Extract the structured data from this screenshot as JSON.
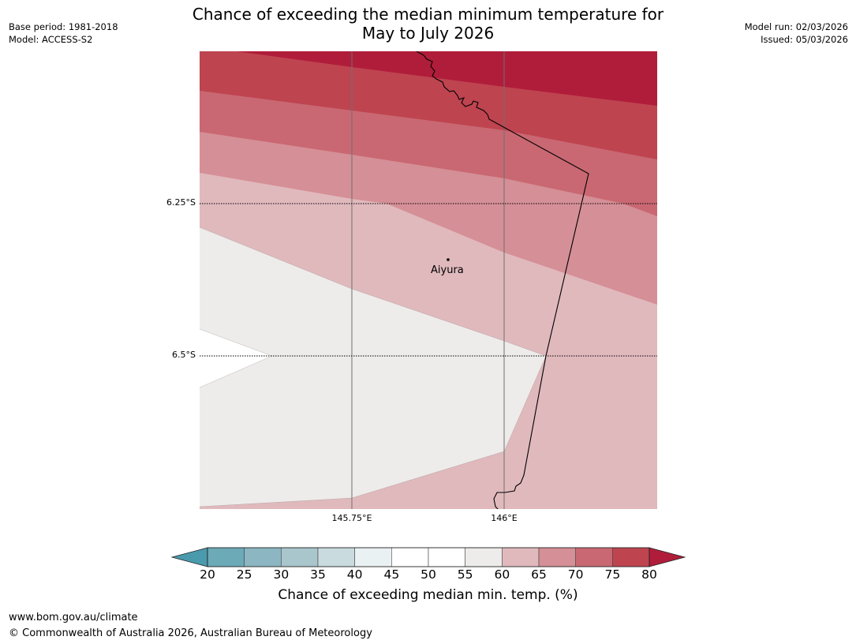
{
  "header": {
    "base_period": "Base period: 1981-2018",
    "model": "Model: ACCESS-S2",
    "model_run": "Model run: 02/03/2026",
    "issued": "Issued: 05/03/2026",
    "title_line1": "Chance of exceeding the median minimum temperature for",
    "title_line2": "May to July 2026"
  },
  "map": {
    "lat_labels": [
      "6.25°S",
      "6.5°S"
    ],
    "lon_labels": [
      "145.75°E",
      "146°E"
    ],
    "place": {
      "name": "Aiyura"
    },
    "bands": [
      {
        "range": "75-80",
        "color": "#be4450"
      },
      {
        "range": "70-75",
        "color": "#c96872"
      },
      {
        "range": "65-70",
        "color": "#d58f96"
      },
      {
        "range": "60-65",
        "color": "#e0b9bd"
      },
      {
        "range": "55-60",
        "color": "#eeecea"
      },
      {
        "range": "50-55",
        "color": "#ffffff"
      }
    ],
    "extreme_color": "#b01d3a"
  },
  "colorbar": {
    "ticks": [
      "20",
      "25",
      "30",
      "35",
      "40",
      "45",
      "50",
      "55",
      "60",
      "65",
      "70",
      "75",
      "80"
    ],
    "colors": [
      "#6caab8",
      "#8bb6c2",
      "#a9c6cc",
      "#c9dbdf",
      "#eaf1f3",
      "#ffffff",
      "#ffffff",
      "#eeecea",
      "#e0b9bd",
      "#d58f96",
      "#c96872",
      "#be4450"
    ],
    "under_color": "#4a9aad",
    "over_color": "#b01d3a",
    "label": "Chance of exceeding median min. temp. (%)"
  },
  "footer": {
    "url": "www.bom.gov.au/climate",
    "copyright": "© Commonwealth of Australia 2026, Australian Bureau of Meteorology"
  }
}
